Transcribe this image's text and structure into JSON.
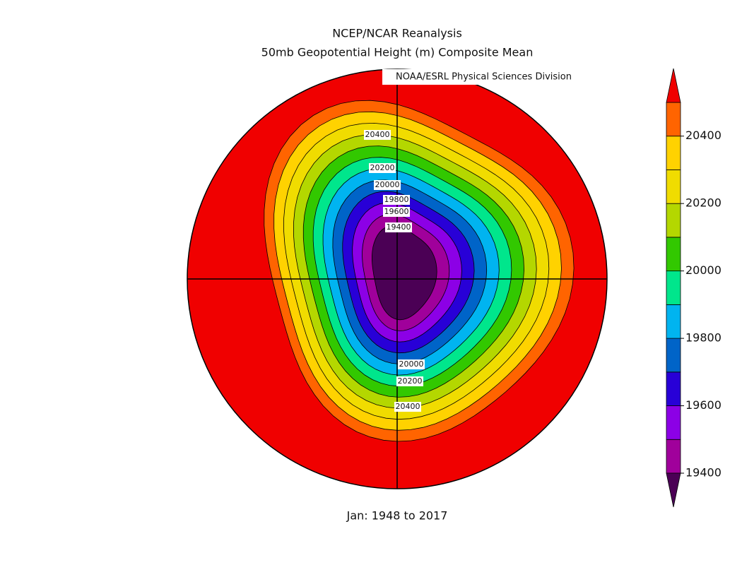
{
  "header": {
    "title": "NCEP/NCAR Reanalysis",
    "subtitle": "50mb Geopotential Height (m) Composite Mean"
  },
  "credit": "NOAA/ESRL Physical Sciences Division",
  "footer": "Jan: 1948 to 2017",
  "contour_labels": [
    20400,
    20200,
    20000,
    19800,
    19600,
    19400,
    20000,
    20200,
    20400
  ],
  "colorbar": {
    "clim": [
      19400,
      20500
    ],
    "ticks": [
      19400,
      19600,
      19800,
      20000,
      20200,
      20400
    ],
    "under_color": "#4b0055",
    "over_color": "#f00000",
    "colors": [
      "#a0009b",
      "#8c00e6",
      "#2800d7",
      "#0064c8",
      "#00b4f0",
      "#00e68c",
      "#32c800",
      "#b4d700",
      "#f0dc00",
      "#ffd200",
      "#ff6400"
    ]
  }
}
